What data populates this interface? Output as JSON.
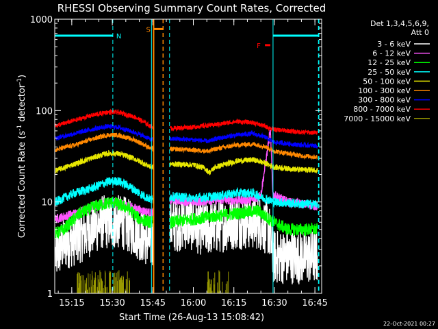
{
  "chart_data": {
    "type": "line",
    "title": "RHESSI Observing Summary Count Rates, Corrected",
    "xlabel": "Start Time (26-Aug-13 15:08:42)",
    "ylabel_main": "Corrected Count Rate (s",
    "ylabel_sup1": "-1",
    "ylabel_mid": " detector",
    "ylabel_sup2": "-1",
    "ylabel_end": ")",
    "y_scale": "log",
    "ylim": [
      1,
      1000
    ],
    "xlim_minutes": [
      908.7,
      1007.5
    ],
    "x_ticks": [
      {
        "label": "15:15",
        "minute": 915
      },
      {
        "label": "15:30",
        "minute": 930
      },
      {
        "label": "15:45",
        "minute": 945
      },
      {
        "label": "16:00",
        "minute": 960
      },
      {
        "label": "16:15",
        "minute": 975
      },
      {
        "label": "16:30",
        "minute": 990
      },
      {
        "label": "16:45",
        "minute": 1005
      }
    ],
    "y_ticks": [
      {
        "label": "1",
        "value": 1
      },
      {
        "label": "10",
        "value": 10
      },
      {
        "label": "100",
        "value": 100
      },
      {
        "label": "1000",
        "value": 1000
      }
    ],
    "legend": {
      "placement": "right",
      "header1": "Det 1,3,4,5,6,9,",
      "header2": "Att 0"
    },
    "series": [
      {
        "name": "3 - 6 keV",
        "color": "#ffffff",
        "noise": 0.1,
        "points": [
          [
            909,
            2.6
          ],
          [
            912,
            3.5
          ],
          [
            918,
            4.2
          ],
          [
            922,
            5.0
          ],
          [
            926,
            6.0
          ],
          [
            930,
            6.0
          ],
          [
            934,
            6.0
          ],
          [
            940,
            4.5
          ],
          [
            944.5,
            3.6
          ],
          [
            952,
            5.5
          ],
          [
            958,
            6.0
          ],
          [
            964,
            5.0
          ],
          [
            970,
            5.5
          ],
          [
            976,
            6.0
          ],
          [
            984,
            6.0
          ],
          [
            988,
            5.0
          ],
          [
            989.5,
            2.5
          ],
          [
            995,
            2.5
          ],
          [
            1006,
            2.5
          ]
        ]
      },
      {
        "name": "6 - 12 keV",
        "color": "#ff55ff",
        "noise": 0.05,
        "points": [
          [
            909,
            6.5
          ],
          [
            916,
            7.5
          ],
          [
            924,
            9.0
          ],
          [
            930,
            10.0
          ],
          [
            936,
            9.0
          ],
          [
            944.5,
            7.5
          ],
          [
            952,
            10.5
          ],
          [
            960,
            10.0
          ],
          [
            968,
            10.5
          ],
          [
            976,
            10.5
          ],
          [
            982,
            10.5
          ],
          [
            985,
            12.0
          ],
          [
            987,
            30.0
          ],
          [
            988.5,
            60.0
          ],
          [
            989.5,
            12.0
          ],
          [
            995,
            10.0
          ],
          [
            1006,
            9.0
          ]
        ]
      },
      {
        "name": "12 - 25 keV",
        "color": "#00ff00",
        "noise": 0.07,
        "points": [
          [
            909,
            4.5
          ],
          [
            912,
            5.0
          ],
          [
            918,
            7.5
          ],
          [
            924,
            9.0
          ],
          [
            930,
            10.0
          ],
          [
            936,
            8.5
          ],
          [
            940,
            6.5
          ],
          [
            944.5,
            6.0
          ],
          [
            952,
            6.0
          ],
          [
            960,
            6.5
          ],
          [
            968,
            7.0
          ],
          [
            976,
            7.5
          ],
          [
            984,
            8.0
          ],
          [
            988,
            6.5
          ],
          [
            990,
            6.0
          ],
          [
            995,
            5.0
          ],
          [
            1006,
            5.0
          ]
        ]
      },
      {
        "name": "25 - 50 keV",
        "color": "#00ffff",
        "noise": 0.05,
        "points": [
          [
            909,
            10.0
          ],
          [
            916,
            12.5
          ],
          [
            922,
            14.0
          ],
          [
            928,
            16.5
          ],
          [
            932,
            17.0
          ],
          [
            936,
            15.0
          ],
          [
            940,
            12.5
          ],
          [
            944.5,
            10.5
          ],
          [
            952,
            11.5
          ],
          [
            960,
            11.0
          ],
          [
            968,
            11.5
          ],
          [
            976,
            12.5
          ],
          [
            982,
            12.5
          ],
          [
            986,
            11.0
          ],
          [
            990,
            10.0
          ],
          [
            1000,
            9.5
          ],
          [
            1006,
            9.5
          ]
        ]
      },
      {
        "name": "50 - 100 keV",
        "color": "#e6e600",
        "noise": 0.03,
        "points": [
          [
            909,
            22.0
          ],
          [
            916,
            26.0
          ],
          [
            922,
            30.0
          ],
          [
            928,
            34.0
          ],
          [
            932,
            34.0
          ],
          [
            938,
            30.0
          ],
          [
            942,
            26.0
          ],
          [
            944.5,
            24.0
          ],
          [
            952,
            26.0
          ],
          [
            960,
            25.5
          ],
          [
            964,
            23.5
          ],
          [
            966,
            21.0
          ],
          [
            968,
            24.0
          ],
          [
            976,
            28.0
          ],
          [
            982,
            29.0
          ],
          [
            986,
            27.0
          ],
          [
            990,
            24.0
          ],
          [
            1000,
            22.5
          ],
          [
            1006,
            22.5
          ]
        ]
      },
      {
        "name": "100 - 300 keV",
        "color": "#ff8800",
        "noise": 0.025,
        "points": [
          [
            909,
            37.0
          ],
          [
            916,
            42.0
          ],
          [
            922,
            48.0
          ],
          [
            928,
            54.0
          ],
          [
            932,
            54.0
          ],
          [
            938,
            48.0
          ],
          [
            942,
            42.0
          ],
          [
            944.5,
            38.0
          ],
          [
            952,
            38.0
          ],
          [
            960,
            37.0
          ],
          [
            966,
            36.0
          ],
          [
            968,
            38.0
          ],
          [
            976,
            42.0
          ],
          [
            982,
            43.0
          ],
          [
            986,
            41.0
          ],
          [
            990,
            36.0
          ],
          [
            1000,
            32.0
          ],
          [
            1006,
            31.0
          ]
        ]
      },
      {
        "name": "300 - 800 keV",
        "color": "#0000ff",
        "noise": 0.025,
        "points": [
          [
            909,
            50.0
          ],
          [
            916,
            56.0
          ],
          [
            922,
            62.0
          ],
          [
            928,
            67.0
          ],
          [
            932,
            66.0
          ],
          [
            938,
            58.0
          ],
          [
            942,
            52.0
          ],
          [
            944.5,
            48.0
          ],
          [
            952,
            49.0
          ],
          [
            960,
            48.0
          ],
          [
            966,
            46.0
          ],
          [
            968,
            49.0
          ],
          [
            976,
            54.0
          ],
          [
            982,
            56.0
          ],
          [
            986,
            52.0
          ],
          [
            990,
            45.0
          ],
          [
            1000,
            42.0
          ],
          [
            1006,
            41.0
          ]
        ]
      },
      {
        "name": "800 - 7000 keV",
        "color": "#ff0000",
        "noise": 0.025,
        "points": [
          [
            909,
            68.0
          ],
          [
            916,
            78.0
          ],
          [
            922,
            88.0
          ],
          [
            928,
            96.0
          ],
          [
            932,
            96.0
          ],
          [
            938,
            86.0
          ],
          [
            942,
            74.0
          ],
          [
            944.5,
            66.0
          ],
          [
            952,
            64.0
          ],
          [
            960,
            66.0
          ],
          [
            968,
            70.0
          ],
          [
            976,
            76.0
          ],
          [
            982,
            74.0
          ],
          [
            986,
            68.0
          ],
          [
            990,
            62.0
          ],
          [
            1000,
            58.0
          ],
          [
            1006,
            57.0
          ]
        ]
      },
      {
        "name": "7000 - 15000 keV",
        "color": "#999900",
        "noise": 0,
        "points": [
          [
            917,
            1.8
          ],
          [
            937,
            1.8
          ]
        ]
      }
    ],
    "attenuator_intervals": [
      {
        "start": 944.5,
        "end": 951.2,
        "color": "#00ffff"
      },
      {
        "start": 989.5,
        "end": 1006.5,
        "color": "#00ffff"
      }
    ],
    "night_bars": [
      {
        "label": "N",
        "start": 908.8,
        "end": 930.2,
        "level": 660,
        "color": "#00ffff"
      },
      {
        "label": "",
        "start": 989.5,
        "end": 1006.3,
        "level": 660,
        "color": "#00ffff"
      }
    ],
    "saa_interval": {
      "label": "S",
      "start": 945.3,
      "end": 948.8,
      "level": 780,
      "color": "#ff8800"
    },
    "flare_flag": {
      "label": "F",
      "start": 986.5,
      "end": 988.5,
      "level": 520,
      "color": "#ff0000"
    },
    "timestamp": "22-Oct-2021 00:27"
  }
}
